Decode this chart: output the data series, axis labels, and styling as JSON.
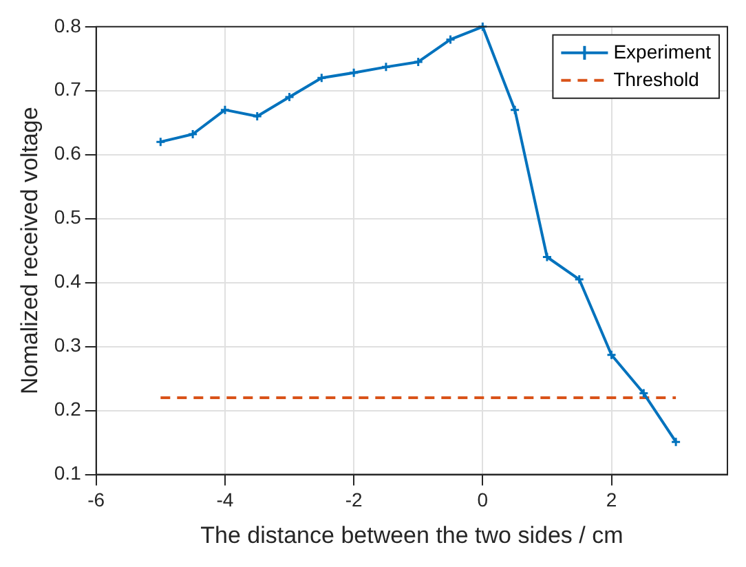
{
  "chart_data": {
    "type": "line",
    "xlabel": "The distance between the two sides / cm",
    "ylabel": "Nomalized received voltage",
    "x": [
      -5,
      -4.5,
      -4,
      -3.5,
      -3,
      -2.5,
      -2,
      -1.5,
      -1,
      -0.5,
      0,
      0.5,
      1,
      1.5,
      2,
      2.5,
      3
    ],
    "series": [
      {
        "name": "Experiment",
        "color": "#0072bd",
        "marker": "cross",
        "values": [
          0.62,
          0.632,
          0.67,
          0.66,
          0.69,
          0.72,
          0.728,
          0.737,
          0.745,
          0.78,
          0.8,
          0.67,
          0.44,
          0.405,
          0.287,
          0.227,
          0.151
        ]
      },
      {
        "name": "Threshold",
        "color": "#d95319",
        "line_style": "dashed",
        "marker": "none",
        "x": [
          -5,
          3
        ],
        "values": [
          0.22,
          0.22
        ]
      }
    ],
    "xlim": [
      -6,
      3.8
    ],
    "xticks": [
      -6,
      -4,
      -2,
      0,
      2
    ],
    "ylim": [
      0.1,
      0.8
    ],
    "yticks": [
      0.1,
      0.2,
      0.3,
      0.4,
      0.5,
      0.6,
      0.7,
      0.8
    ],
    "grid": true,
    "legend": "top right"
  }
}
